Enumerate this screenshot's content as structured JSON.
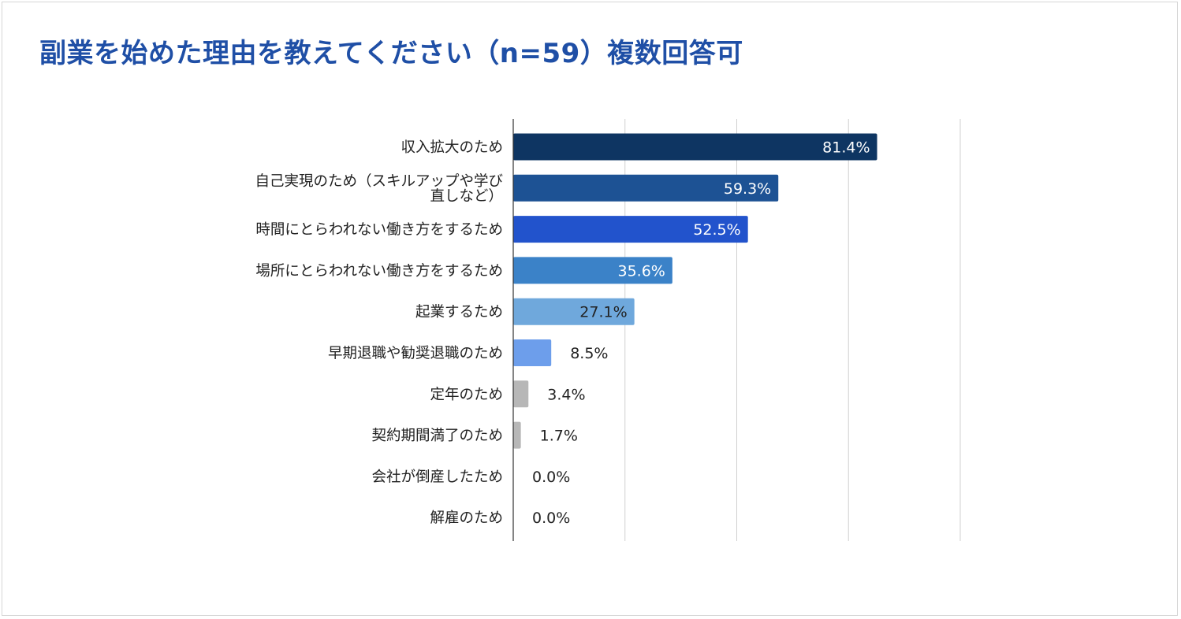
{
  "chart_data": {
    "type": "bar",
    "orientation": "horizontal",
    "title": "副業を始めた理由を教えてください（n=59）複数回答可",
    "xlabel": "",
    "ylabel": "",
    "xlim": [
      0,
      100
    ],
    "grid": true,
    "legend": "none",
    "categories": [
      [
        "収入拡大のため"
      ],
      [
        "自己実現のため（スキルアップや学び",
        "直しなど）"
      ],
      [
        "時間にとらわれない働き方をするため"
      ],
      [
        "場所にとらわれない働き方をするため"
      ],
      [
        "起業するため"
      ],
      [
        "早期退職や勧奨退職のため"
      ],
      [
        "定年のため"
      ],
      [
        "契約期間満了のため"
      ],
      [
        "会社が倒産したため"
      ],
      [
        "解雇のため"
      ]
    ],
    "values": [
      81.4,
      59.3,
      52.5,
      35.6,
      27.1,
      8.5,
      3.4,
      1.7,
      0.0,
      0.0
    ],
    "value_labels": [
      "81.4%",
      "59.3%",
      "52.5%",
      "35.6%",
      "27.1%",
      "8.5%",
      "3.4%",
      "1.7%",
      "0.0%",
      "0.0%"
    ],
    "bar_colors": [
      "#0e3562",
      "#1d5294",
      "#2253cc",
      "#3b82c8",
      "#6fa8dc",
      "#6d9eeb",
      "#b7b7b7",
      "#b7b7b7",
      "#b7b7b7",
      "#b7b7b7"
    ],
    "value_label_colors": [
      "#ffffff",
      "#ffffff",
      "#ffffff",
      "#ffffff",
      "#222222",
      "#222222",
      "#222222",
      "#222222",
      "#222222",
      "#222222"
    ],
    "value_label_inside": [
      true,
      true,
      true,
      true,
      true,
      false,
      false,
      false,
      false,
      false
    ],
    "colors": {
      "title": "#1f4fa6",
      "gridline": "#d0d0d0",
      "axis": "#333333"
    }
  }
}
